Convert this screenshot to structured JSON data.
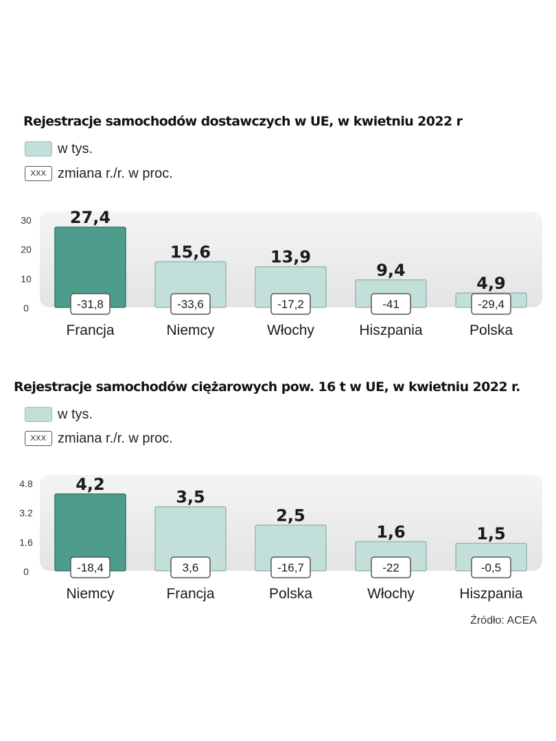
{
  "legend": {
    "value_label": "w tys.",
    "box_sample": "XXX",
    "change_label": "zmiana r./r. w proc."
  },
  "source": "Źródło:  ACEA",
  "chart_data": [
    {
      "type": "bar",
      "title": "Rejestracje samochodów dostawczych w UE, w kwietniu 2022 r",
      "categories": [
        "Francja",
        "Niemcy",
        "Włochy",
        "Hiszpania",
        "Polska"
      ],
      "values": [
        27.4,
        15.6,
        13.9,
        9.4,
        4.9
      ],
      "value_labels": [
        "27,4",
        "15,6",
        "13,9",
        "9,4",
        "4,9"
      ],
      "changes": [
        "-31,8",
        "-33,6",
        "-17,2",
        "-41",
        "-29,4"
      ],
      "ylim": [
        0,
        30
      ],
      "yticks": [
        "0",
        "10",
        "20",
        "30"
      ],
      "ytick_values": [
        0,
        10,
        20,
        30
      ],
      "highlight_index": 0,
      "colors": {
        "highlight": "#4e9c8b",
        "bar": "#c3dfd9"
      }
    },
    {
      "type": "bar",
      "title": "Rejestracje samochodów ciężarowych pow. 16 t w UE, w kwietniu 2022 r.",
      "categories": [
        "Niemcy",
        "Francja",
        "Polska",
        "Włochy",
        "Hiszpania"
      ],
      "values": [
        4.2,
        3.5,
        2.5,
        1.6,
        1.5
      ],
      "value_labels": [
        "4,2",
        "3,5",
        "2,5",
        "1,6",
        "1,5"
      ],
      "changes": [
        "-18,4",
        "3,6",
        "-16,7",
        "-22",
        "-0,5"
      ],
      "ylim": [
        0,
        4.8
      ],
      "yticks": [
        "0",
        "1.6",
        "3.2",
        "4.8"
      ],
      "ytick_values": [
        0,
        1.6,
        3.2,
        4.8
      ],
      "highlight_index": 0,
      "colors": {
        "highlight": "#4e9c8b",
        "bar": "#c3dfd9"
      }
    }
  ]
}
